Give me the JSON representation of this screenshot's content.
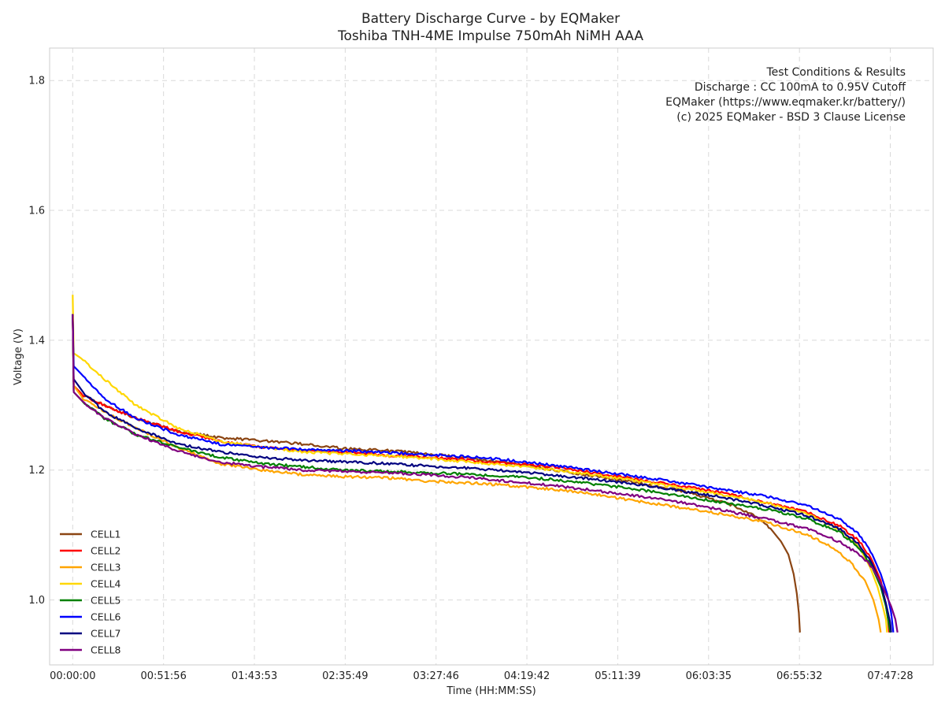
{
  "chart_data": {
    "type": "line",
    "title": "Battery Discharge Curve - by EQMaker",
    "subtitle": "Toshiba TNH-4ME Impulse 750mAh NiMH AAA",
    "xlabel": "Time (HH:MM:SS)",
    "ylabel": "Voltage (V)",
    "xlim": [
      -0.22,
      8.2
    ],
    "ylim": [
      0.9,
      1.85
    ],
    "grid": true,
    "legend_position": "lower-left",
    "x_ticks": [
      {
        "value": 0.0,
        "label": "00:00:00"
      },
      {
        "value": 0.8656,
        "label": "00:51:56"
      },
      {
        "value": 1.7314,
        "label": "01:43:53"
      },
      {
        "value": 2.5969,
        "label": "02:35:49"
      },
      {
        "value": 3.4628,
        "label": "03:27:46"
      },
      {
        "value": 4.3283,
        "label": "04:19:42"
      },
      {
        "value": 5.1942,
        "label": "05:11:39"
      },
      {
        "value": 6.0597,
        "label": "06:03:35"
      },
      {
        "value": 6.9256,
        "label": "06:55:32"
      },
      {
        "value": 7.7911,
        "label": "07:47:28"
      }
    ],
    "y_ticks": [
      {
        "value": 1.0,
        "label": "1.0"
      },
      {
        "value": 1.2,
        "label": "1.2"
      },
      {
        "value": 1.4,
        "label": "1.4"
      },
      {
        "value": 1.6,
        "label": "1.6"
      },
      {
        "value": 1.8,
        "label": "1.8"
      }
    ],
    "annotation": [
      "Test Conditions & Results",
      "Discharge : CC 100mA to 0.95V Cutoff",
      "EQMaker (https://www.eqmaker.kr/battery/)",
      "(c) 2025 EQMaker - BSD 3 Clause License"
    ],
    "series": [
      {
        "name": "CELL1",
        "color": "#8B4513",
        "x_unit": "hours",
        "points": [
          [
            0,
            1.44
          ],
          [
            0.01,
            1.33
          ],
          [
            0.1,
            1.315
          ],
          [
            0.3,
            1.3
          ],
          [
            0.6,
            1.28
          ],
          [
            1.0,
            1.26
          ],
          [
            1.4,
            1.25
          ],
          [
            1.8,
            1.245
          ],
          [
            2.2,
            1.24
          ],
          [
            2.6,
            1.233
          ],
          [
            3.0,
            1.23
          ],
          [
            3.4,
            1.225
          ],
          [
            3.8,
            1.218
          ],
          [
            4.2,
            1.21
          ],
          [
            4.6,
            1.2
          ],
          [
            5.0,
            1.19
          ],
          [
            5.4,
            1.18
          ],
          [
            5.8,
            1.168
          ],
          [
            6.1,
            1.155
          ],
          [
            6.3,
            1.145
          ],
          [
            6.5,
            1.13
          ],
          [
            6.65,
            1.11
          ],
          [
            6.75,
            1.09
          ],
          [
            6.82,
            1.07
          ],
          [
            6.87,
            1.04
          ],
          [
            6.9,
            1.01
          ],
          [
            6.92,
            0.98
          ],
          [
            6.93,
            0.95
          ]
        ]
      },
      {
        "name": "CELL2",
        "color": "#FF0000",
        "x_unit": "hours",
        "points": [
          [
            0,
            1.44
          ],
          [
            0.01,
            1.33
          ],
          [
            0.1,
            1.315
          ],
          [
            0.3,
            1.3
          ],
          [
            0.6,
            1.28
          ],
          [
            1.0,
            1.26
          ],
          [
            1.4,
            1.245
          ],
          [
            1.8,
            1.235
          ],
          [
            2.2,
            1.23
          ],
          [
            2.6,
            1.228
          ],
          [
            3.0,
            1.222
          ],
          [
            3.4,
            1.22
          ],
          [
            3.8,
            1.215
          ],
          [
            4.2,
            1.21
          ],
          [
            4.6,
            1.205
          ],
          [
            5.0,
            1.195
          ],
          [
            5.4,
            1.185
          ],
          [
            5.8,
            1.175
          ],
          [
            6.2,
            1.165
          ],
          [
            6.6,
            1.15
          ],
          [
            7.0,
            1.135
          ],
          [
            7.3,
            1.115
          ],
          [
            7.5,
            1.09
          ],
          [
            7.62,
            1.06
          ],
          [
            7.7,
            1.03
          ],
          [
            7.74,
            1.0
          ],
          [
            7.77,
            0.97
          ],
          [
            7.78,
            0.95
          ]
        ]
      },
      {
        "name": "CELL3",
        "color": "#FFA500",
        "x_unit": "hours",
        "points": [
          [
            0,
            1.44
          ],
          [
            0.01,
            1.33
          ],
          [
            0.1,
            1.31
          ],
          [
            0.3,
            1.29
          ],
          [
            0.6,
            1.265
          ],
          [
            1.0,
            1.235
          ],
          [
            1.4,
            1.21
          ],
          [
            1.8,
            1.2
          ],
          [
            2.2,
            1.193
          ],
          [
            2.6,
            1.19
          ],
          [
            3.0,
            1.188
          ],
          [
            3.4,
            1.183
          ],
          [
            3.8,
            1.18
          ],
          [
            4.2,
            1.176
          ],
          [
            4.6,
            1.17
          ],
          [
            5.0,
            1.162
          ],
          [
            5.4,
            1.152
          ],
          [
            5.8,
            1.142
          ],
          [
            6.2,
            1.132
          ],
          [
            6.6,
            1.12
          ],
          [
            7.0,
            1.1
          ],
          [
            7.2,
            1.085
          ],
          [
            7.4,
            1.06
          ],
          [
            7.55,
            1.03
          ],
          [
            7.63,
            1.0
          ],
          [
            7.68,
            0.97
          ],
          [
            7.7,
            0.95
          ]
        ]
      },
      {
        "name": "CELL4",
        "color": "#FFD700",
        "x_unit": "hours",
        "points": [
          [
            0,
            1.47
          ],
          [
            0.01,
            1.38
          ],
          [
            0.1,
            1.37
          ],
          [
            0.3,
            1.34
          ],
          [
            0.6,
            1.3
          ],
          [
            1.0,
            1.265
          ],
          [
            1.4,
            1.245
          ],
          [
            1.8,
            1.235
          ],
          [
            2.2,
            1.228
          ],
          [
            2.6,
            1.225
          ],
          [
            3.0,
            1.222
          ],
          [
            3.4,
            1.218
          ],
          [
            3.8,
            1.212
          ],
          [
            4.2,
            1.207
          ],
          [
            4.6,
            1.2
          ],
          [
            5.0,
            1.192
          ],
          [
            5.4,
            1.183
          ],
          [
            5.8,
            1.172
          ],
          [
            6.2,
            1.162
          ],
          [
            6.6,
            1.15
          ],
          [
            7.0,
            1.132
          ],
          [
            7.3,
            1.11
          ],
          [
            7.5,
            1.08
          ],
          [
            7.6,
            1.05
          ],
          [
            7.67,
            1.02
          ],
          [
            7.72,
            0.99
          ],
          [
            7.75,
            0.97
          ],
          [
            7.76,
            0.95
          ]
        ]
      },
      {
        "name": "CELL5",
        "color": "#008000",
        "x_unit": "hours",
        "points": [
          [
            0,
            1.44
          ],
          [
            0.01,
            1.32
          ],
          [
            0.1,
            1.305
          ],
          [
            0.3,
            1.28
          ],
          [
            0.6,
            1.255
          ],
          [
            1.0,
            1.235
          ],
          [
            1.4,
            1.22
          ],
          [
            1.8,
            1.21
          ],
          [
            2.2,
            1.205
          ],
          [
            2.6,
            1.2
          ],
          [
            3.0,
            1.198
          ],
          [
            3.4,
            1.196
          ],
          [
            3.8,
            1.193
          ],
          [
            4.2,
            1.19
          ],
          [
            4.6,
            1.185
          ],
          [
            5.0,
            1.178
          ],
          [
            5.4,
            1.17
          ],
          [
            5.8,
            1.16
          ],
          [
            6.2,
            1.15
          ],
          [
            6.6,
            1.14
          ],
          [
            7.0,
            1.125
          ],
          [
            7.3,
            1.105
          ],
          [
            7.5,
            1.08
          ],
          [
            7.62,
            1.05
          ],
          [
            7.7,
            1.02
          ],
          [
            7.75,
            0.99
          ],
          [
            7.78,
            0.96
          ],
          [
            7.79,
            0.95
          ]
        ]
      },
      {
        "name": "CELL6",
        "color": "#0000FF",
        "x_unit": "hours",
        "points": [
          [
            0,
            1.44
          ],
          [
            0.01,
            1.36
          ],
          [
            0.1,
            1.345
          ],
          [
            0.3,
            1.31
          ],
          [
            0.6,
            1.28
          ],
          [
            1.0,
            1.255
          ],
          [
            1.4,
            1.24
          ],
          [
            1.8,
            1.235
          ],
          [
            2.2,
            1.232
          ],
          [
            2.6,
            1.23
          ],
          [
            3.0,
            1.227
          ],
          [
            3.4,
            1.224
          ],
          [
            3.8,
            1.22
          ],
          [
            4.2,
            1.215
          ],
          [
            4.6,
            1.207
          ],
          [
            5.0,
            1.198
          ],
          [
            5.4,
            1.19
          ],
          [
            5.8,
            1.18
          ],
          [
            6.2,
            1.17
          ],
          [
            6.6,
            1.16
          ],
          [
            7.0,
            1.145
          ],
          [
            7.3,
            1.125
          ],
          [
            7.5,
            1.1
          ],
          [
            7.62,
            1.07
          ],
          [
            7.7,
            1.04
          ],
          [
            7.76,
            1.01
          ],
          [
            7.8,
            0.98
          ],
          [
            7.82,
            0.95
          ]
        ]
      },
      {
        "name": "CELL7",
        "color": "#000080",
        "x_unit": "hours",
        "points": [
          [
            0,
            1.44
          ],
          [
            0.01,
            1.34
          ],
          [
            0.1,
            1.32
          ],
          [
            0.3,
            1.29
          ],
          [
            0.6,
            1.265
          ],
          [
            1.0,
            1.24
          ],
          [
            1.4,
            1.228
          ],
          [
            1.8,
            1.22
          ],
          [
            2.2,
            1.215
          ],
          [
            2.6,
            1.213
          ],
          [
            3.0,
            1.21
          ],
          [
            3.4,
            1.206
          ],
          [
            3.8,
            1.203
          ],
          [
            4.2,
            1.198
          ],
          [
            4.6,
            1.192
          ],
          [
            5.0,
            1.185
          ],
          [
            5.4,
            1.178
          ],
          [
            5.8,
            1.168
          ],
          [
            6.2,
            1.158
          ],
          [
            6.6,
            1.145
          ],
          [
            7.0,
            1.13
          ],
          [
            7.3,
            1.11
          ],
          [
            7.5,
            1.085
          ],
          [
            7.62,
            1.055
          ],
          [
            7.7,
            1.025
          ],
          [
            7.75,
            0.995
          ],
          [
            7.79,
            0.965
          ],
          [
            7.8,
            0.95
          ]
        ]
      },
      {
        "name": "CELL8",
        "color": "#800080",
        "x_unit": "hours",
        "points": [
          [
            0,
            1.44
          ],
          [
            0.01,
            1.32
          ],
          [
            0.1,
            1.305
          ],
          [
            0.3,
            1.28
          ],
          [
            0.6,
            1.255
          ],
          [
            1.0,
            1.23
          ],
          [
            1.4,
            1.212
          ],
          [
            1.8,
            1.205
          ],
          [
            2.2,
            1.2
          ],
          [
            2.6,
            1.198
          ],
          [
            3.0,
            1.196
          ],
          [
            3.4,
            1.193
          ],
          [
            3.8,
            1.188
          ],
          [
            4.2,
            1.182
          ],
          [
            4.6,
            1.176
          ],
          [
            5.0,
            1.168
          ],
          [
            5.4,
            1.16
          ],
          [
            5.8,
            1.15
          ],
          [
            6.2,
            1.138
          ],
          [
            6.6,
            1.125
          ],
          [
            7.0,
            1.11
          ],
          [
            7.3,
            1.09
          ],
          [
            7.5,
            1.07
          ],
          [
            7.62,
            1.05
          ],
          [
            7.72,
            1.02
          ],
          [
            7.8,
            0.99
          ],
          [
            7.84,
            0.97
          ],
          [
            7.86,
            0.95
          ]
        ]
      }
    ]
  }
}
